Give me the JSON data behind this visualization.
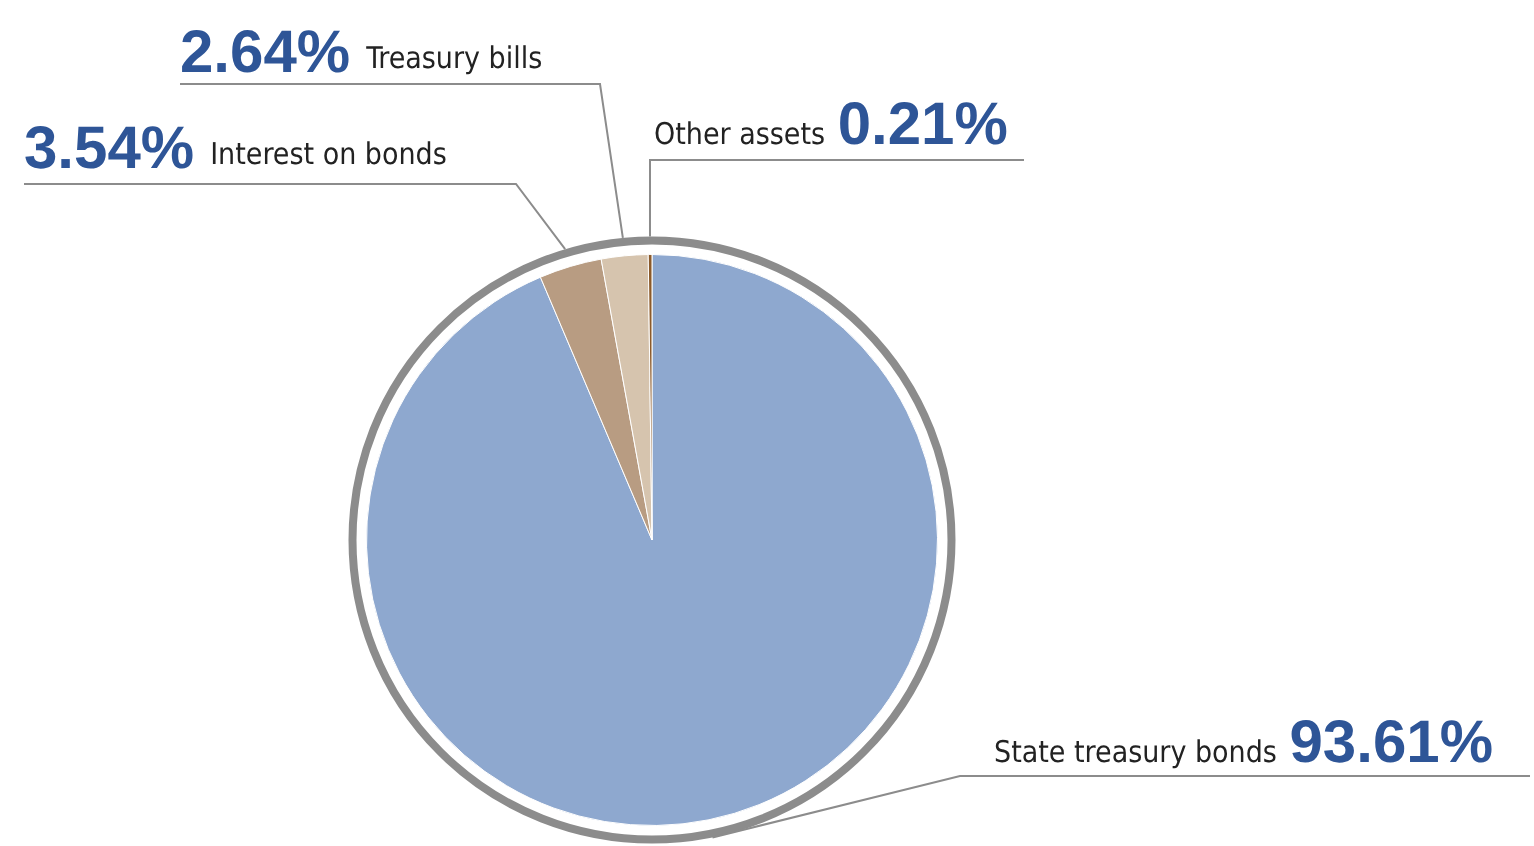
{
  "chart_data": {
    "type": "pie",
    "categories": [
      "State treasury bonds",
      "Interest on bonds",
      "Treasury bills",
      "Other assets"
    ],
    "values": [
      93.61,
      3.54,
      2.64,
      0.21
    ],
    "colors": [
      "#8ea8cf",
      "#b89c82",
      "#d6c4ae",
      "#8b5a2b"
    ],
    "value_labels": [
      "93.61%",
      "3.54%",
      "2.64%",
      "0.21%"
    ],
    "legend": false
  }
}
